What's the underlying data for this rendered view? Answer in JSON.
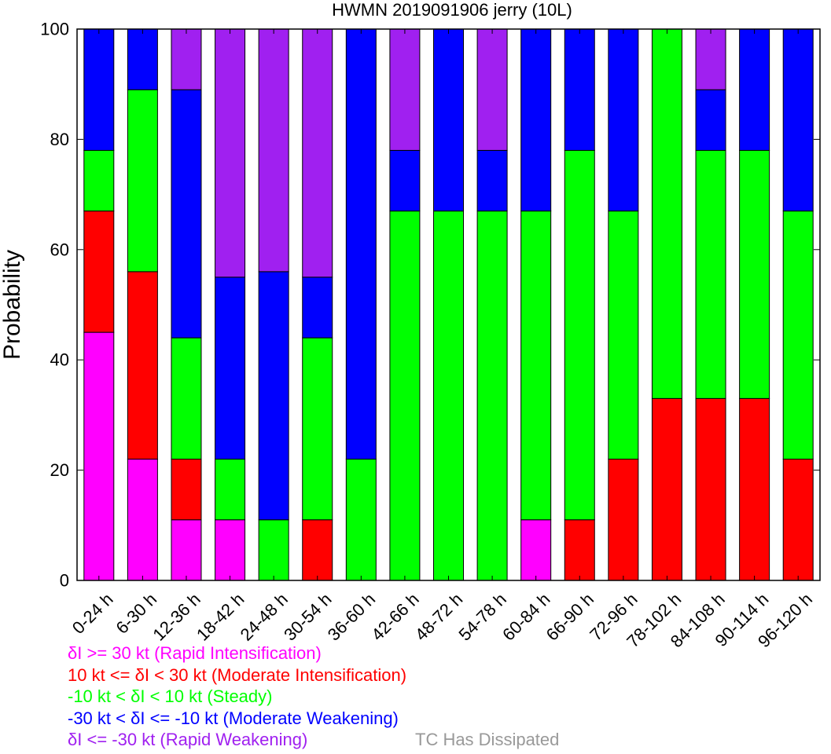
{
  "chart_data": {
    "type": "bar",
    "stacked": true,
    "title": "HWMN 2019091906 jerry (10L)",
    "ylabel": "Probability",
    "xlabel": "",
    "ylim": [
      0,
      100
    ],
    "yticks": [
      0,
      20,
      40,
      60,
      80,
      100
    ],
    "grid": false,
    "categories": [
      "0-24 h",
      "6-30 h",
      "12-36 h",
      "18-42 h",
      "24-48 h",
      "30-54 h",
      "36-60 h",
      "42-66 h",
      "48-72 h",
      "54-78 h",
      "60-84 h",
      "66-90 h",
      "72-96 h",
      "78-102 h",
      "84-108 h",
      "90-114 h",
      "96-120 h"
    ],
    "series": [
      {
        "name": "δI >= 30 kt (Rapid Intensification)",
        "color": "#ff00ff",
        "values": [
          45,
          22,
          11,
          11,
          0,
          0,
          0,
          0,
          0,
          0,
          11,
          0,
          0,
          0,
          0,
          0,
          0
        ]
      },
      {
        "name": "10 kt <= δI < 30 kt (Moderate Intensification)",
        "color": "#ff0000",
        "values": [
          22,
          34,
          11,
          0,
          0,
          11,
          0,
          0,
          0,
          0,
          0,
          11,
          22,
          33,
          33,
          33,
          22
        ]
      },
      {
        "name": "-10 kt < δI < 10 kt (Steady)",
        "color": "#00ff00",
        "values": [
          11,
          33,
          22,
          11,
          11,
          33,
          22,
          67,
          67,
          67,
          56,
          67,
          45,
          67,
          45,
          45,
          45
        ]
      },
      {
        "name": "-30 kt < δI <= -10 kt (Moderate Weakening)",
        "color": "#0000ff",
        "values": [
          22,
          11,
          45,
          33,
          45,
          11,
          78,
          11,
          33,
          11,
          33,
          22,
          33,
          0,
          11,
          22,
          33
        ]
      },
      {
        "name": "δI <= -30 kt (Rapid Weakening)",
        "color": "#a020f0",
        "values": [
          0,
          0,
          11,
          45,
          44,
          45,
          0,
          22,
          0,
          22,
          0,
          0,
          0,
          0,
          11,
          0,
          0
        ]
      }
    ]
  },
  "legend": {
    "items": [
      {
        "text": "δI >= 30 kt (Rapid Intensification)",
        "color": "#ff00ff"
      },
      {
        "text": "10 kt <= δI < 30 kt (Moderate Intensification)",
        "color": "#ff0000"
      },
      {
        "text": "-10 kt < δI < 10 kt (Steady)",
        "color": "#00ff00"
      },
      {
        "text": "-30 kt < δI <= -10 kt (Moderate Weakening)",
        "color": "#0000ff"
      },
      {
        "text": "δI <= -30 kt (Rapid Weakening)",
        "color": "#a020f0"
      }
    ],
    "dissipated": {
      "text": "TC Has Dissipated",
      "color": "#999999"
    }
  }
}
